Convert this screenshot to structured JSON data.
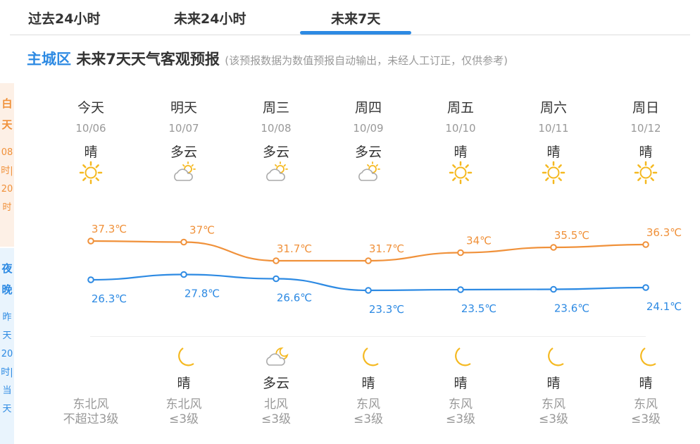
{
  "tabs": [
    {
      "label": "过去24小时",
      "active": false
    },
    {
      "label": "未来24小时",
      "active": false
    },
    {
      "label": "未来7天",
      "active": true
    }
  ],
  "title": {
    "location": "主城区",
    "text": "未来7天天气客观预报",
    "note": "(该预报数据为数值预报自动输出，未经人工订正，仅供参考)"
  },
  "side": {
    "day_label": "白天",
    "day_range": "08时|20时",
    "night_label": "夜晚",
    "night_range": "昨天20时|当天"
  },
  "colors": {
    "high": "#f0913a",
    "low": "#2d8ae3",
    "accent": "#2d8ae3",
    "icon": "#f5b921"
  },
  "days": [
    {
      "week": "今天",
      "date": "10/06",
      "day_weather": "晴",
      "day_icon": "sun-icon",
      "high": "37.3℃",
      "low": "26.3℃",
      "night_weather": "",
      "night_icon": "",
      "wind_dir": "东北风",
      "wind_level": "不超过3级"
    },
    {
      "week": "明天",
      "date": "10/07",
      "day_weather": "多云",
      "day_icon": "partly-cloudy-icon",
      "high": "37℃",
      "low": "27.8℃",
      "night_weather": "晴",
      "night_icon": "moon-icon",
      "wind_dir": "东北风",
      "wind_level": "≤3级"
    },
    {
      "week": "周三",
      "date": "10/08",
      "day_weather": "多云",
      "day_icon": "partly-cloudy-icon",
      "high": "31.7℃",
      "low": "26.6℃",
      "night_weather": "多云",
      "night_icon": "cloudy-night-icon",
      "wind_dir": "北风",
      "wind_level": "≤3级"
    },
    {
      "week": "周四",
      "date": "10/09",
      "day_weather": "多云",
      "day_icon": "partly-cloudy-icon",
      "high": "31.7℃",
      "low": "23.3℃",
      "night_weather": "晴",
      "night_icon": "moon-icon",
      "wind_dir": "东风",
      "wind_level": "≤3级"
    },
    {
      "week": "周五",
      "date": "10/10",
      "day_weather": "晴",
      "day_icon": "sun-icon",
      "high": "34℃",
      "low": "23.5℃",
      "night_weather": "晴",
      "night_icon": "moon-icon",
      "wind_dir": "东风",
      "wind_level": "≤3级"
    },
    {
      "week": "周六",
      "date": "10/11",
      "day_weather": "晴",
      "day_icon": "sun-icon",
      "high": "35.5℃",
      "low": "23.6℃",
      "night_weather": "晴",
      "night_icon": "moon-icon",
      "wind_dir": "东风",
      "wind_level": "≤3级"
    },
    {
      "week": "周日",
      "date": "10/12",
      "day_weather": "晴",
      "day_icon": "sun-icon",
      "high": "36.3℃",
      "low": "24.1℃",
      "night_weather": "晴",
      "night_icon": "moon-icon",
      "wind_dir": "东风",
      "wind_level": "≤3级"
    }
  ],
  "chart_data": {
    "type": "line",
    "categories": [
      "10/06",
      "10/07",
      "10/08",
      "10/09",
      "10/10",
      "10/11",
      "10/12"
    ],
    "series": [
      {
        "values": [
          37.3,
          37,
          31.7,
          31.7,
          34,
          35.5,
          36.3
        ]
      },
      {
        "values": [
          26.3,
          27.8,
          26.6,
          23.3,
          23.5,
          23.6,
          24.1
        ]
      }
    ]
  }
}
